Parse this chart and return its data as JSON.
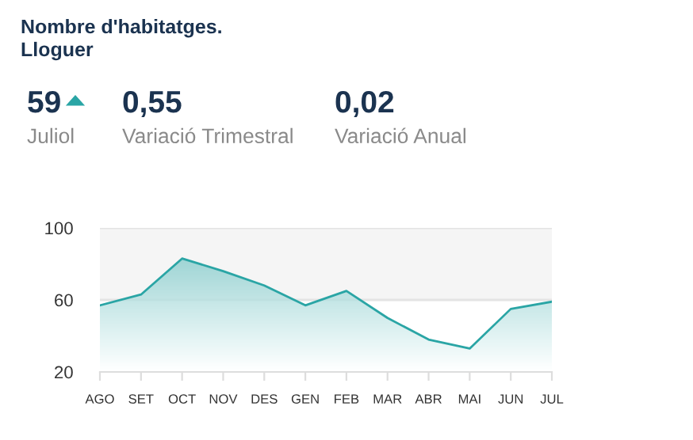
{
  "chart_data": {
    "type": "area",
    "title": "Nombre d'habitatges.\nLloguer",
    "annotations": [
      "59",
      "Juliol",
      "0,55",
      "Variació Trimestral",
      "0,02",
      "Variació Anual"
    ],
    "categories": [
      "AGO",
      "SET",
      "OCT",
      "NOV",
      "DES",
      "GEN",
      "FEB",
      "MAR",
      "ABR",
      "MAI",
      "JUN",
      "JUL"
    ],
    "series": [
      {
        "color": "#2aa5a5",
        "values": [
          57,
          63,
          83,
          76,
          68,
          57,
          65,
          50,
          38,
          33,
          55,
          59
        ]
      }
    ],
    "ylim": [
      20,
      100
    ],
    "yticks": [
      20,
      60,
      100
    ],
    "grid": "y",
    "bands": [
      {
        "axis": "y",
        "from": 60,
        "to": 100,
        "color": "#f5f5f5"
      }
    ]
  }
}
